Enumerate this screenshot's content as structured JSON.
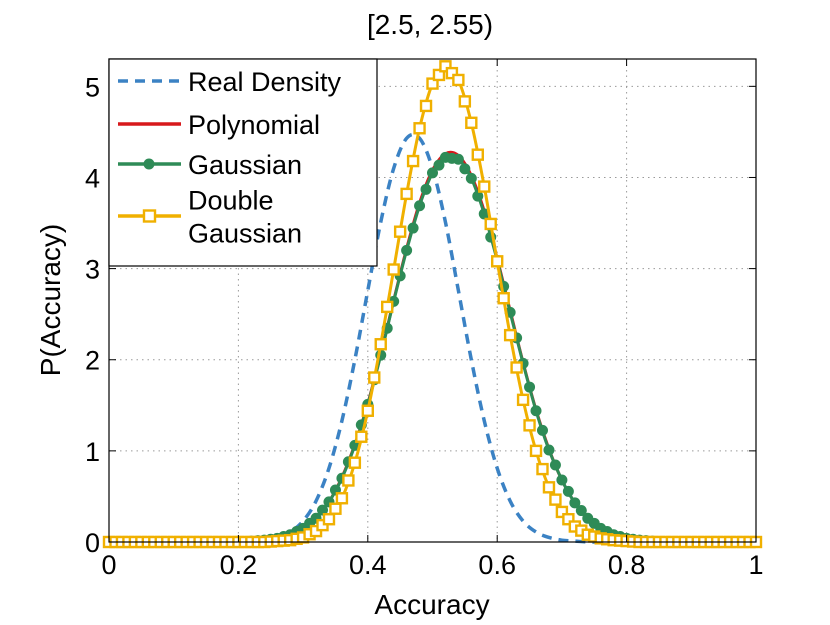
{
  "colors": {
    "real_density": "#3b82c4",
    "polynomial": "#d7191c",
    "gaussian": "#2e8b57",
    "double_gaussian": "#f0b000"
  },
  "chart_data": {
    "type": "line",
    "title": "[2.5, 2.55)",
    "xlabel": "Accuracy",
    "ylabel": "P(Accuracy)",
    "xlim": [
      0,
      1
    ],
    "ylim": [
      0,
      5.3
    ],
    "xticks": [
      0,
      0.2,
      0.4,
      0.6,
      0.8,
      1
    ],
    "xtick_labels": [
      "0",
      "0.2",
      "0.4",
      "0.6",
      "0.8",
      "1"
    ],
    "yticks": [
      0,
      1,
      2,
      3,
      4,
      5
    ],
    "ytick_labels": [
      "0",
      "1",
      "2",
      "3",
      "4",
      "5"
    ],
    "grid": true,
    "legend_position": "top-left",
    "x": [
      0,
      0.02,
      0.04,
      0.06,
      0.08,
      0.1,
      0.12,
      0.14,
      0.16,
      0.18,
      0.2,
      0.22,
      0.24,
      0.26,
      0.28,
      0.3,
      0.32,
      0.34,
      0.36,
      0.38,
      0.4,
      0.42,
      0.44,
      0.46,
      0.48,
      0.5,
      0.52,
      0.54,
      0.56,
      0.58,
      0.6,
      0.62,
      0.64,
      0.66,
      0.68,
      0.7,
      0.72,
      0.74,
      0.76,
      0.78,
      0.8,
      0.82,
      0.84,
      0.86,
      0.88,
      0.9,
      0.92,
      0.94,
      0.96,
      0.98,
      1
    ],
    "series": [
      {
        "name": "Real Density",
        "style": "dashed",
        "marker": "none",
        "values": [
          0,
          0,
          0,
          0,
          0,
          0,
          0,
          0,
          0,
          0,
          0,
          0.01,
          0.02,
          0.05,
          0.11,
          0.23,
          0.45,
          0.81,
          1.33,
          2.0,
          2.76,
          3.51,
          4.1,
          4.43,
          4.43,
          4.1,
          3.51,
          2.76,
          2.0,
          1.33,
          0.81,
          0.45,
          0.23,
          0.11,
          0.05,
          0.02,
          0.01,
          0,
          0,
          0,
          0,
          0,
          0,
          0,
          0,
          0,
          0,
          0,
          0,
          0,
          0
        ]
      },
      {
        "name": "Polynomial",
        "style": "solid",
        "marker": "none",
        "values": [
          0,
          0,
          0,
          0,
          0,
          0,
          0,
          0,
          0,
          0,
          0,
          0.01,
          0.02,
          0.04,
          0.08,
          0.15,
          0.26,
          0.44,
          0.71,
          1.07,
          1.52,
          2.06,
          2.65,
          3.22,
          3.72,
          4.08,
          4.26,
          4.24,
          4.02,
          3.63,
          3.11,
          2.54,
          1.97,
          1.45,
          1.02,
          0.68,
          0.43,
          0.26,
          0.15,
          0.08,
          0.04,
          0.02,
          0.01,
          0,
          0,
          0,
          0,
          0,
          0,
          0,
          0
        ]
      },
      {
        "name": "Gaussian",
        "style": "solid",
        "marker": "circle",
        "values": [
          0,
          0,
          0,
          0,
          0,
          0,
          0,
          0,
          0,
          0,
          0,
          0.01,
          0.02,
          0.04,
          0.08,
          0.15,
          0.26,
          0.44,
          0.7,
          1.06,
          1.51,
          2.05,
          2.64,
          3.2,
          3.69,
          4.05,
          4.22,
          4.2,
          3.99,
          3.6,
          3.09,
          2.52,
          1.96,
          1.44,
          1.01,
          0.68,
          0.43,
          0.26,
          0.15,
          0.08,
          0.04,
          0.02,
          0.01,
          0,
          0,
          0,
          0,
          0,
          0,
          0,
          0
        ]
      },
      {
        "name": "Double Gaussian",
        "style": "solid",
        "marker": "square",
        "values": [
          0,
          0,
          0,
          0,
          0,
          0,
          0,
          0,
          0,
          0,
          0,
          0,
          0,
          0.01,
          0.02,
          0.05,
          0.12,
          0.25,
          0.48,
          0.87,
          1.44,
          2.17,
          2.99,
          3.82,
          4.54,
          5.03,
          5.22,
          5.07,
          4.6,
          3.9,
          3.08,
          2.27,
          1.56,
          1.0,
          0.6,
          0.33,
          0.17,
          0.08,
          0.04,
          0.02,
          0.01,
          0,
          0,
          0,
          0,
          0,
          0,
          0,
          0,
          0,
          0
        ]
      }
    ],
    "legend": {
      "entries": [
        {
          "lines": [
            "Real Density"
          ]
        },
        {
          "lines": [
            "Polynomial"
          ]
        },
        {
          "lines": [
            "Gaussian"
          ]
        },
        {
          "lines": [
            "Double",
            "Gaussian"
          ]
        }
      ]
    }
  }
}
